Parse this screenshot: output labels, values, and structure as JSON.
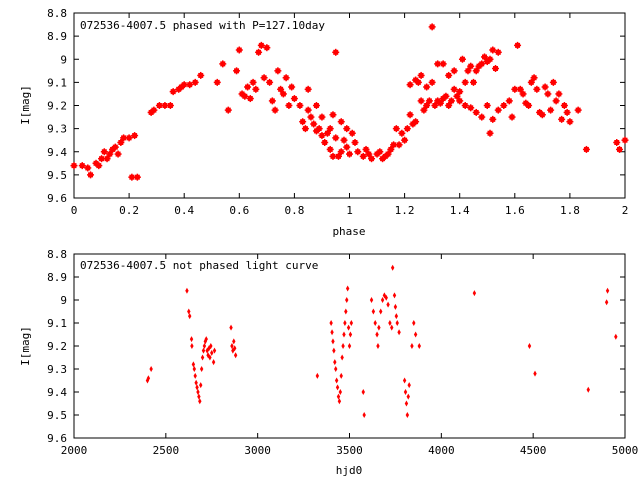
{
  "chart_data": [
    {
      "type": "scatter",
      "title": "072536-4007.5 phased with P=127.10day",
      "xlabel": "phase",
      "ylabel": "I[mag]",
      "xlim": [
        0,
        2
      ],
      "ylim": [
        9.6,
        8.8
      ],
      "y_inverted": true,
      "grid": false,
      "marker_color": "#ff0000",
      "marker": "star",
      "x_ticks": [
        "0",
        "0.2",
        "0.4",
        "0.6",
        "0.8",
        "1",
        "1.2",
        "1.4",
        "1.6",
        "1.8",
        "2"
      ],
      "y_ticks": [
        "8.8",
        "8.9",
        "9",
        "9.1",
        "9.2",
        "9.3",
        "9.4",
        "9.5",
        "9.6"
      ],
      "x_tick_values": [
        0,
        0.2,
        0.4,
        0.6,
        0.8,
        1.0,
        1.2,
        1.4,
        1.6,
        1.8,
        2.0
      ],
      "y_tick_values": [
        8.8,
        8.9,
        9.0,
        9.1,
        9.2,
        9.3,
        9.4,
        9.5,
        9.6
      ],
      "points": [
        [
          0.0,
          9.46
        ],
        [
          0.03,
          9.46
        ],
        [
          0.05,
          9.47
        ],
        [
          0.06,
          9.5
        ],
        [
          0.08,
          9.45
        ],
        [
          0.09,
          9.46
        ],
        [
          0.1,
          9.43
        ],
        [
          0.11,
          9.4
        ],
        [
          0.12,
          9.43
        ],
        [
          0.13,
          9.41
        ],
        [
          0.14,
          9.39
        ],
        [
          0.15,
          9.38
        ],
        [
          0.16,
          9.41
        ],
        [
          0.17,
          9.36
        ],
        [
          0.18,
          9.34
        ],
        [
          0.2,
          9.34
        ],
        [
          0.21,
          9.51
        ],
        [
          0.22,
          9.33
        ],
        [
          0.23,
          9.51
        ],
        [
          0.28,
          9.23
        ],
        [
          0.29,
          9.22
        ],
        [
          0.31,
          9.2
        ],
        [
          0.33,
          9.2
        ],
        [
          0.35,
          9.2
        ],
        [
          0.36,
          9.14
        ],
        [
          0.38,
          9.13
        ],
        [
          0.39,
          9.12
        ],
        [
          0.4,
          9.11
        ],
        [
          0.42,
          9.11
        ],
        [
          0.44,
          9.1
        ],
        [
          0.46,
          9.07
        ],
        [
          0.52,
          9.1
        ],
        [
          0.54,
          9.02
        ],
        [
          0.56,
          9.22
        ],
        [
          0.59,
          9.05
        ],
        [
          0.6,
          8.96
        ],
        [
          0.61,
          9.15
        ],
        [
          0.62,
          9.16
        ],
        [
          0.63,
          9.12
        ],
        [
          0.64,
          9.17
        ],
        [
          0.65,
          9.1
        ],
        [
          0.66,
          9.13
        ],
        [
          0.67,
          8.97
        ],
        [
          0.68,
          8.94
        ],
        [
          0.69,
          9.08
        ],
        [
          0.7,
          8.95
        ],
        [
          0.71,
          9.1
        ],
        [
          0.72,
          9.18
        ],
        [
          0.73,
          9.22
        ],
        [
          0.74,
          9.05
        ],
        [
          0.75,
          9.13
        ],
        [
          0.76,
          9.15
        ],
        [
          0.77,
          9.08
        ],
        [
          0.78,
          9.2
        ],
        [
          0.79,
          9.12
        ],
        [
          0.8,
          9.17
        ],
        [
          0.82,
          9.2
        ],
        [
          0.83,
          9.27
        ],
        [
          0.84,
          9.3
        ],
        [
          0.85,
          9.22
        ],
        [
          0.86,
          9.25
        ],
        [
          0.87,
          9.28
        ],
        [
          0.88,
          9.31
        ],
        [
          0.89,
          9.3
        ],
        [
          0.9,
          9.33
        ],
        [
          0.91,
          9.36
        ],
        [
          0.92,
          9.32
        ],
        [
          0.93,
          9.39
        ],
        [
          0.94,
          9.42
        ],
        [
          0.95,
          9.34
        ],
        [
          0.96,
          9.42
        ],
        [
          0.97,
          9.4
        ],
        [
          0.98,
          9.35
        ],
        [
          0.99,
          9.38
        ],
        [
          1.0,
          9.41
        ],
        [
          0.85,
          9.13
        ],
        [
          0.88,
          9.2
        ],
        [
          0.9,
          9.25
        ],
        [
          0.93,
          9.3
        ],
        [
          0.94,
          9.24
        ],
        [
          0.95,
          8.97
        ],
        [
          0.97,
          9.27
        ],
        [
          0.99,
          9.3
        ],
        [
          1.01,
          9.32
        ],
        [
          1.02,
          9.36
        ],
        [
          1.03,
          9.4
        ],
        [
          1.05,
          9.42
        ],
        [
          1.06,
          9.39
        ],
        [
          1.07,
          9.41
        ],
        [
          1.08,
          9.43
        ],
        [
          1.1,
          9.41
        ],
        [
          1.11,
          9.4
        ],
        [
          1.12,
          9.43
        ],
        [
          1.13,
          9.42
        ],
        [
          1.14,
          9.41
        ],
        [
          1.15,
          9.39
        ],
        [
          1.16,
          9.37
        ],
        [
          1.17,
          9.3
        ],
        [
          1.18,
          9.37
        ],
        [
          1.19,
          9.32
        ],
        [
          1.2,
          9.35
        ],
        [
          1.21,
          9.3
        ],
        [
          1.22,
          9.24
        ],
        [
          1.23,
          9.28
        ],
        [
          1.24,
          9.27
        ],
        [
          1.25,
          9.1
        ],
        [
          1.26,
          9.18
        ],
        [
          1.27,
          9.22
        ],
        [
          1.28,
          9.2
        ],
        [
          1.29,
          9.18
        ],
        [
          1.3,
          8.86
        ],
        [
          1.31,
          9.2
        ],
        [
          1.32,
          9.18
        ],
        [
          1.33,
          9.19
        ],
        [
          1.34,
          9.17
        ],
        [
          1.35,
          9.16
        ],
        [
          1.36,
          9.2
        ],
        [
          1.37,
          9.18
        ],
        [
          1.38,
          9.13
        ],
        [
          1.39,
          9.16
        ],
        [
          1.4,
          9.14
        ],
        [
          1.41,
          9.0
        ],
        [
          1.42,
          9.1
        ],
        [
          1.43,
          9.05
        ],
        [
          1.44,
          9.03
        ],
        [
          1.45,
          9.1
        ],
        [
          1.46,
          9.05
        ],
        [
          1.47,
          9.03
        ],
        [
          1.48,
          9.02
        ],
        [
          1.49,
          8.99
        ],
        [
          1.5,
          9.01
        ],
        [
          1.51,
          9.0
        ],
        [
          1.52,
          8.96
        ],
        [
          1.53,
          9.04
        ],
        [
          1.54,
          8.97
        ],
        [
          1.22,
          9.11
        ],
        [
          1.24,
          9.09
        ],
        [
          1.26,
          9.07
        ],
        [
          1.28,
          9.12
        ],
        [
          1.3,
          9.1
        ],
        [
          1.32,
          9.02
        ],
        [
          1.34,
          9.02
        ],
        [
          1.36,
          9.07
        ],
        [
          1.38,
          9.05
        ],
        [
          1.4,
          9.18
        ],
        [
          1.42,
          9.2
        ],
        [
          1.44,
          9.21
        ],
        [
          1.46,
          9.23
        ],
        [
          1.48,
          9.25
        ],
        [
          1.5,
          9.2
        ],
        [
          1.51,
          9.32
        ],
        [
          1.52,
          9.26
        ],
        [
          1.54,
          9.22
        ],
        [
          1.56,
          9.2
        ],
        [
          1.58,
          9.18
        ],
        [
          1.59,
          9.25
        ],
        [
          1.6,
          9.13
        ],
        [
          1.61,
          8.94
        ],
        [
          1.62,
          9.13
        ],
        [
          1.63,
          9.15
        ],
        [
          1.64,
          9.19
        ],
        [
          1.65,
          9.2
        ],
        [
          1.66,
          9.1
        ],
        [
          1.67,
          9.08
        ],
        [
          1.68,
          9.13
        ],
        [
          1.69,
          9.23
        ],
        [
          1.7,
          9.24
        ],
        [
          1.71,
          9.12
        ],
        [
          1.72,
          9.15
        ],
        [
          1.73,
          9.22
        ],
        [
          1.74,
          9.1
        ],
        [
          1.75,
          9.18
        ],
        [
          1.76,
          9.15
        ],
        [
          1.77,
          9.26
        ],
        [
          1.78,
          9.2
        ],
        [
          1.79,
          9.23
        ],
        [
          1.8,
          9.27
        ],
        [
          1.83,
          9.22
        ],
        [
          1.86,
          9.39
        ],
        [
          1.97,
          9.36
        ],
        [
          1.98,
          9.39
        ],
        [
          2.0,
          9.35
        ]
      ]
    },
    {
      "type": "scatter",
      "title": "072536-4007.5 not phased light curve",
      "xlabel": "hjd0",
      "ylabel": "I[mag]",
      "xlim": [
        2000,
        5000
      ],
      "ylim": [
        9.6,
        8.8
      ],
      "y_inverted": true,
      "grid": false,
      "marker_color": "#ff0000",
      "marker": "diamond",
      "x_ticks": [
        "2000",
        "2500",
        "3000",
        "3500",
        "4000",
        "4500",
        "5000"
      ],
      "y_ticks": [
        "8.8",
        "8.9",
        "9",
        "9.1",
        "9.2",
        "9.3",
        "9.4",
        "9.5",
        "9.6"
      ],
      "x_tick_values": [
        2000,
        2500,
        3000,
        3500,
        4000,
        4500,
        5000
      ],
      "y_tick_values": [
        8.8,
        8.9,
        9.0,
        9.1,
        9.2,
        9.3,
        9.4,
        9.5,
        9.6
      ],
      "points": [
        [
          2400,
          9.35
        ],
        [
          2405,
          9.34
        ],
        [
          2420,
          9.3
        ],
        [
          2615,
          8.96
        ],
        [
          2625,
          9.05
        ],
        [
          2630,
          9.07
        ],
        [
          2640,
          9.17
        ],
        [
          2642,
          9.2
        ],
        [
          2650,
          9.28
        ],
        [
          2655,
          9.3
        ],
        [
          2660,
          9.33
        ],
        [
          2665,
          9.36
        ],
        [
          2670,
          9.38
        ],
        [
          2675,
          9.4
        ],
        [
          2680,
          9.42
        ],
        [
          2685,
          9.44
        ],
        [
          2690,
          9.37
        ],
        [
          2695,
          9.3
        ],
        [
          2700,
          9.25
        ],
        [
          2705,
          9.22
        ],
        [
          2710,
          9.2
        ],
        [
          2715,
          9.18
        ],
        [
          2720,
          9.17
        ],
        [
          2725,
          9.22
        ],
        [
          2730,
          9.24
        ],
        [
          2735,
          9.21
        ],
        [
          2740,
          9.25
        ],
        [
          2745,
          9.2
        ],
        [
          2750,
          9.23
        ],
        [
          2760,
          9.27
        ],
        [
          2765,
          9.22
        ],
        [
          2855,
          9.12
        ],
        [
          2860,
          9.2
        ],
        [
          2865,
          9.22
        ],
        [
          2870,
          9.18
        ],
        [
          2875,
          9.21
        ],
        [
          2880,
          9.24
        ],
        [
          3325,
          9.33
        ],
        [
          3400,
          9.1
        ],
        [
          3405,
          9.14
        ],
        [
          3410,
          9.18
        ],
        [
          3415,
          9.22
        ],
        [
          3420,
          9.27
        ],
        [
          3425,
          9.3
        ],
        [
          3430,
          9.35
        ],
        [
          3435,
          9.38
        ],
        [
          3440,
          9.42
        ],
        [
          3445,
          9.44
        ],
        [
          3450,
          9.4
        ],
        [
          3455,
          9.33
        ],
        [
          3460,
          9.25
        ],
        [
          3465,
          9.2
        ],
        [
          3470,
          9.15
        ],
        [
          3475,
          9.1
        ],
        [
          3480,
          9.05
        ],
        [
          3485,
          9.0
        ],
        [
          3490,
          8.95
        ],
        [
          3495,
          9.12
        ],
        [
          3500,
          9.2
        ],
        [
          3505,
          9.15
        ],
        [
          3510,
          9.1
        ],
        [
          3575,
          9.4
        ],
        [
          3580,
          9.5
        ],
        [
          3620,
          9.0
        ],
        [
          3630,
          9.05
        ],
        [
          3640,
          9.1
        ],
        [
          3650,
          9.15
        ],
        [
          3655,
          9.2
        ],
        [
          3660,
          9.12
        ],
        [
          3670,
          9.05
        ],
        [
          3680,
          9.0
        ],
        [
          3690,
          8.98
        ],
        [
          3700,
          8.99
        ],
        [
          3710,
          9.02
        ],
        [
          3720,
          9.1
        ],
        [
          3730,
          9.12
        ],
        [
          3735,
          8.86
        ],
        [
          3745,
          8.98
        ],
        [
          3750,
          9.03
        ],
        [
          3755,
          9.07
        ],
        [
          3760,
          9.1
        ],
        [
          3770,
          9.14
        ],
        [
          3800,
          9.35
        ],
        [
          3805,
          9.4
        ],
        [
          3810,
          9.45
        ],
        [
          3815,
          9.5
        ],
        [
          3820,
          9.42
        ],
        [
          3825,
          9.37
        ],
        [
          3840,
          9.2
        ],
        [
          3850,
          9.1
        ],
        [
          3860,
          9.15
        ],
        [
          3880,
          9.2
        ],
        [
          4180,
          8.97
        ],
        [
          4480,
          9.2
        ],
        [
          4510,
          9.32
        ],
        [
          4800,
          9.39
        ],
        [
          4900,
          9.01
        ],
        [
          4905,
          8.96
        ],
        [
          4950,
          9.16
        ]
      ]
    }
  ]
}
